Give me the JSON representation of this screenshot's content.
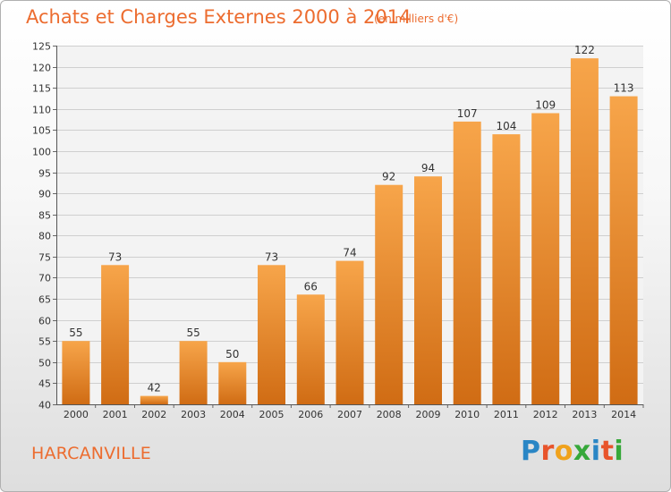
{
  "header": {
    "title": "Achats et Charges Externes 2000 à 2014",
    "subtitle": "(en milliers d'€)"
  },
  "footer": {
    "city": "HARCANVILLE",
    "logo_text": "Proxiti",
    "logo_letters": [
      "P",
      "r",
      "o",
      "x",
      "i",
      "t",
      "i"
    ],
    "logo_colors": [
      "#2a86c5",
      "#e8542b",
      "#f0a21c",
      "#36a83a",
      "#2a86c5",
      "#e8542b",
      "#36a83a"
    ]
  },
  "colors": {
    "accent": "#ec6c2f",
    "bar_top": "#f7a54a",
    "bar_bottom": "#d06c14"
  },
  "chart_data": {
    "type": "bar",
    "title": "Achats et Charges Externes 2000 à 2014",
    "subtitle": "(en milliers d'€)",
    "categories": [
      "2000",
      "2001",
      "2002",
      "2003",
      "2004",
      "2005",
      "2006",
      "2007",
      "2008",
      "2009",
      "2010",
      "2011",
      "2012",
      "2013",
      "2014"
    ],
    "values": [
      55,
      73,
      42,
      55,
      50,
      73,
      66,
      74,
      92,
      94,
      107,
      104,
      109,
      122,
      113
    ],
    "data_labels": [
      "55",
      "73",
      "42",
      "55",
      "50",
      "73",
      "66",
      "74",
      "92",
      "94",
      "107",
      "104",
      "109",
      "122",
      "113"
    ],
    "ylim": [
      40,
      125
    ],
    "yticks": [
      40,
      45,
      50,
      55,
      60,
      65,
      70,
      75,
      80,
      85,
      90,
      95,
      100,
      105,
      110,
      115,
      120,
      125
    ],
    "grid": true,
    "xlabel": "",
    "ylabel": ""
  }
}
